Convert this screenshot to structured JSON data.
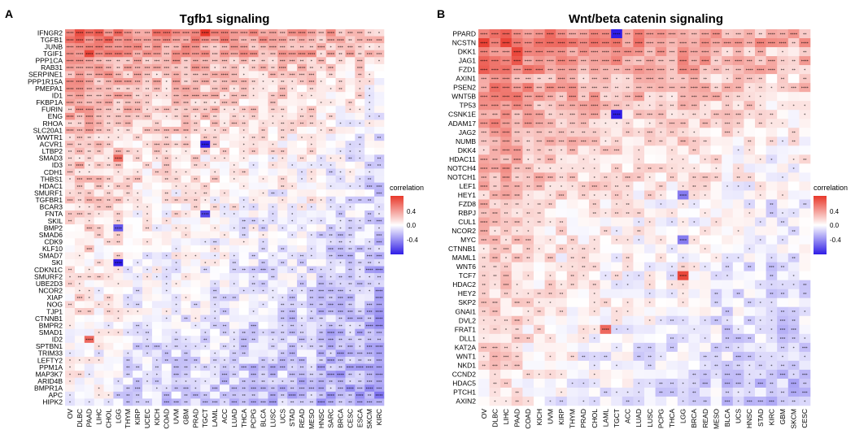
{
  "colors": {
    "high": "#e8372a",
    "mid": "#ffffff",
    "low": "#2f1de6"
  },
  "chart_data": [
    {
      "type": "heatmap",
      "panel_label": "A",
      "title": "Tgfb1 signaling",
      "legend_title": "correlation",
      "legend_ticks": [
        "0.4",
        "0.0",
        "-0.4"
      ],
      "legend_tick_values": [
        0.4,
        0.0,
        -0.4
      ],
      "color_range": [
        -0.6,
        0.6
      ],
      "rows": [
        "IFNGR2",
        "TGFB1",
        "JUNB",
        "TGIF1",
        "PPP1CA",
        "RAB31",
        "SERPINE1",
        "PPP1R15A",
        "PMEPA1",
        "ID1",
        "FKBP1A",
        "FURIN",
        "ENG",
        "RHOA",
        "SLC20A1",
        "WWTR1",
        "ACVR1",
        "LTBP2",
        "SMAD3",
        "ID3",
        "CDH1",
        "THBS1",
        "HDAC1",
        "SMURF1",
        "TGFBR1",
        "BCAR3",
        "FNTA",
        "SKIL",
        "BMP2",
        "SMAD6",
        "CDK9",
        "KLF10",
        "SMAD7",
        "SKI",
        "CDKN1C",
        "SMURF2",
        "UBE2D3",
        "NCOR2",
        "XIAP",
        "NOG",
        "TJP1",
        "CTNNB1",
        "BMPR2",
        "SMAD1",
        "ID2",
        "SPTBN1",
        "TRIM33",
        "LEFTY2",
        "PPM1A",
        "MAP3K7",
        "ARID4B",
        "BMPR1A",
        "APC",
        "HIPK2"
      ],
      "columns": [
        "OV",
        "DLBC",
        "PAAD",
        "LIHC",
        "CHOL",
        "LGG",
        "THYM",
        "KIRP",
        "UCEC",
        "KICH",
        "COAD",
        "UVM",
        "GBM",
        "PRAD",
        "TGCT",
        "LAML",
        "ACC",
        "LUAD",
        "THCA",
        "PCPG",
        "BLCA",
        "LUSC",
        "UCS",
        "STAD",
        "READ",
        "MESO",
        "HNSC",
        "SARC",
        "BRCA",
        "CESC",
        "ESCA",
        "SKCM",
        "KIRC"
      ],
      "row_base": [
        0.3,
        0.28,
        0.22,
        0.25,
        0.18,
        0.17,
        0.15,
        0.14,
        0.13,
        0.13,
        0.1,
        0.12,
        0.11,
        0.08,
        0.08,
        0.05,
        0.05,
        0.06,
        0.03,
        0.04,
        0.03,
        0.05,
        0.02,
        0.0,
        0.02,
        0.01,
        0.0,
        -0.01,
        -0.02,
        -0.02,
        -0.03,
        -0.03,
        -0.04,
        -0.04,
        -0.05,
        -0.05,
        -0.06,
        -0.06,
        -0.06,
        -0.07,
        -0.07,
        -0.08,
        -0.08,
        -0.09,
        -0.09,
        -0.1,
        -0.1,
        -0.11,
        -0.12,
        -0.12,
        -0.13,
        -0.13,
        -0.14,
        -0.15
      ],
      "col_base": [
        0.12,
        0.14,
        0.12,
        0.1,
        0.1,
        0.08,
        0.05,
        0.04,
        0.04,
        0.03,
        0.03,
        0.04,
        0.04,
        0.05,
        0.03,
        0.02,
        0.02,
        0.02,
        0.0,
        -0.01,
        -0.02,
        -0.02,
        0.0,
        -0.02,
        -0.02,
        0.0,
        -0.05,
        -0.06,
        -0.07,
        -0.07,
        -0.07,
        -0.1,
        -0.12
      ],
      "special": [
        {
          "row": "IFNGR2",
          "col": "TGCT",
          "value": 0.6
        },
        {
          "row": "TGIF1",
          "col": "PAAD",
          "value": 0.55
        },
        {
          "row": "ACVR1",
          "col": "TGCT",
          "value": -0.65
        },
        {
          "row": "FNTA",
          "col": "TGCT",
          "value": -0.5
        },
        {
          "row": "SKI",
          "col": "LGG",
          "value": -0.6
        },
        {
          "row": "BMP2",
          "col": "LGG",
          "value": -0.45
        },
        {
          "row": "SMAD3",
          "col": "LGG",
          "value": 0.45
        },
        {
          "row": "ID2",
          "col": "PAAD",
          "value": 0.45
        }
      ],
      "seed": 7
    },
    {
      "type": "heatmap",
      "panel_label": "B",
      "title": "Wnt/beta catenin signaling",
      "legend_title": "correlation",
      "legend_ticks": [
        "0.4",
        "0.0",
        "-0.4"
      ],
      "legend_tick_values": [
        0.4,
        0.0,
        -0.4
      ],
      "color_range": [
        -0.6,
        0.6
      ],
      "rows": [
        "PPARD",
        "NCSTN",
        "DKK1",
        "JAG1",
        "FZD1",
        "AXIN1",
        "PSEN2",
        "WNT5B",
        "TP53",
        "CSNK1E",
        "ADAM17",
        "JAG2",
        "NUMB",
        "DKK4",
        "HDAC11",
        "NOTCH4",
        "NOTCH1",
        "LEF1",
        "HEY1",
        "FZD8",
        "RBPJ",
        "CUL1",
        "NCOR2",
        "MYC",
        "CTNNB1",
        "MAML1",
        "WNT6",
        "TCF7",
        "HDAC2",
        "HEY2",
        "SKP2",
        "GNAI1",
        "DVL2",
        "FRAT1",
        "DLL1",
        "KAT2A",
        "WNT1",
        "NKD1",
        "CCND2",
        "HDAC5",
        "PTCH1",
        "AXIN2"
      ],
      "columns": [
        "OV",
        "DLBC",
        "LIHC",
        "PAAD",
        "COAD",
        "KICH",
        "UVM",
        "KIRP",
        "THYM",
        "PRAD",
        "CHOL",
        "LAML",
        "TGCT",
        "ACC",
        "LUAD",
        "LUSC",
        "PCPG",
        "THCA",
        "LGG",
        "BRCA",
        "READ",
        "MESO",
        "BLCA",
        "UCS",
        "HNSC",
        "STAD",
        "KIRC",
        "GBM",
        "SKCM",
        "CESC"
      ],
      "row_base": [
        0.28,
        0.32,
        0.22,
        0.26,
        0.24,
        0.15,
        0.2,
        0.18,
        0.15,
        0.14,
        0.12,
        0.1,
        0.1,
        0.07,
        0.08,
        0.08,
        0.08,
        0.06,
        0.05,
        0.03,
        0.03,
        0.02,
        0.01,
        0.0,
        0.0,
        0.0,
        0.0,
        -0.01,
        -0.01,
        -0.02,
        -0.02,
        -0.03,
        -0.03,
        -0.04,
        -0.04,
        -0.05,
        -0.05,
        -0.06,
        -0.06,
        -0.07,
        -0.07,
        -0.08
      ],
      "col_base": [
        0.14,
        0.16,
        0.15,
        0.14,
        0.1,
        0.08,
        0.07,
        0.05,
        0.06,
        0.04,
        0.05,
        0.04,
        0.02,
        0.02,
        0.01,
        0.01,
        0.0,
        -0.01,
        0.02,
        0.0,
        -0.01,
        -0.02,
        -0.03,
        -0.03,
        -0.05,
        -0.05,
        -0.08,
        -0.06,
        -0.07,
        -0.05
      ],
      "special": [
        {
          "row": "PPARD",
          "col": "TGCT",
          "value": -0.7
        },
        {
          "row": "CSNK1E",
          "col": "TGCT",
          "value": -0.7
        },
        {
          "row": "DKK1",
          "col": "PAAD",
          "value": 0.55
        },
        {
          "row": "TCF7",
          "col": "LGG",
          "value": 0.55
        },
        {
          "row": "FRAT1",
          "col": "LAML",
          "value": 0.45
        },
        {
          "row": "MYC",
          "col": "LGG",
          "value": -0.35
        },
        {
          "row": "HEY1",
          "col": "LGG",
          "value": -0.35
        }
      ],
      "seed": 13
    }
  ]
}
